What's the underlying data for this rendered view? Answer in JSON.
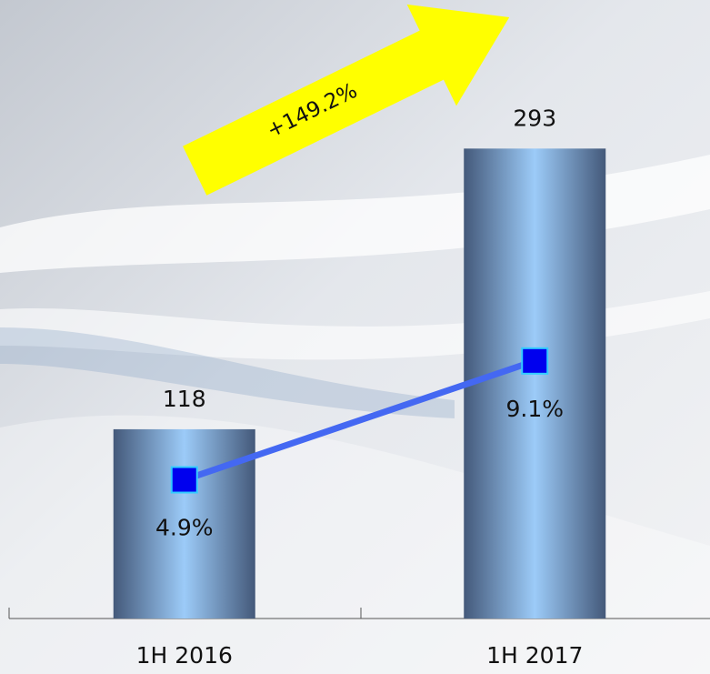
{
  "chart_data": {
    "type": "bar",
    "categories": [
      "1H 2016",
      "1H 2017"
    ],
    "series": [
      {
        "color": "#9ccbf8",
        "values": [
          118,
          293
        ]
      },
      {
        "type": "line",
        "axis": "y2",
        "color": "#4468f2",
        "values": [
          4.9,
          9.1
        ],
        "value_labels": [
          "4.9%",
          "9.1%"
        ]
      }
    ],
    "ylim": [
      0,
      300
    ],
    "y2lim": [
      0,
      17
    ],
    "annotation": "+149.2%"
  }
}
